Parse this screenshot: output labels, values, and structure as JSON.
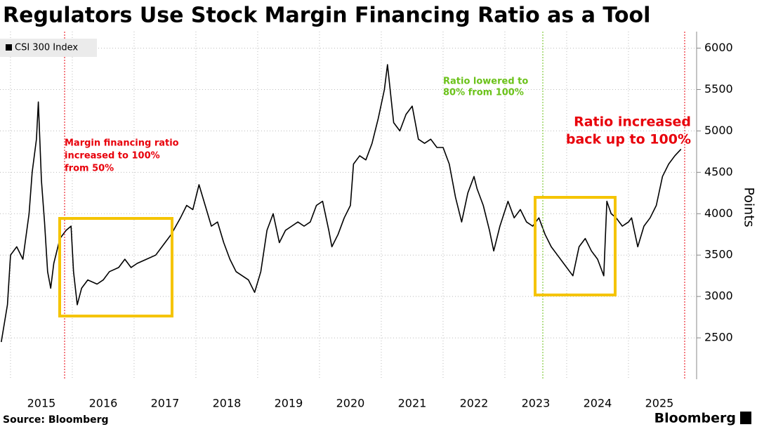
{
  "chart_data": {
    "type": "line",
    "title": "Regulators Use Stock Margin Financing Ratio as a Tool",
    "y_label": "Points",
    "source": "Source: Bloomberg",
    "brand": "Bloomberg",
    "annotations": [
      {
        "lines": [
          "Margin financing ratio",
          "increased to 100%",
          "from 50%"
        ],
        "color": "#e8000b"
      },
      {
        "lines": [
          "Ratio lowered to",
          "80% from 100%"
        ],
        "color": "#6bc21a"
      },
      {
        "lines": [
          "Ratio increased",
          "back up to 100%"
        ],
        "color": "#e8000b"
      }
    ],
    "x": [
      2014.85,
      2014.95,
      2015.0,
      2015.1,
      2015.2,
      2015.3,
      2015.35,
      2015.42,
      2015.45,
      2015.5,
      2015.55,
      2015.6,
      2015.65,
      2015.7,
      2015.8,
      2015.9,
      2015.98,
      2016.02,
      2016.08,
      2016.15,
      2016.25,
      2016.4,
      2016.5,
      2016.6,
      2016.75,
      2016.85,
      2016.95,
      2017.05,
      2017.2,
      2017.35,
      2017.5,
      2017.6,
      2017.75,
      2017.85,
      2017.95,
      2018.05,
      2018.15,
      2018.25,
      2018.35,
      2018.45,
      2018.55,
      2018.65,
      2018.75,
      2018.85,
      2018.95,
      2019.05,
      2019.15,
      2019.25,
      2019.35,
      2019.45,
      2019.55,
      2019.65,
      2019.75,
      2019.85,
      2019.95,
      2020.05,
      2020.15,
      2020.2,
      2020.3,
      2020.4,
      2020.5,
      2020.55,
      2020.65,
      2020.75,
      2020.85,
      2020.95,
      2021.05,
      2021.1,
      2021.2,
      2021.3,
      2021.4,
      2021.5,
      2021.6,
      2021.7,
      2021.8,
      2021.9,
      2022.0,
      2022.1,
      2022.2,
      2022.3,
      2022.4,
      2022.5,
      2022.55,
      2022.65,
      2022.75,
      2022.82,
      2022.92,
      2023.05,
      2023.15,
      2023.25,
      2023.35,
      2023.45,
      2023.55,
      2023.65,
      2023.75,
      2023.85,
      2023.95,
      2024.05,
      2024.1,
      2024.2,
      2024.3,
      2024.4,
      2024.5,
      2024.6,
      2024.65,
      2024.72,
      2024.8,
      2024.9,
      2025.0,
      2025.05,
      2025.15,
      2025.25,
      2025.35,
      2025.45,
      2025.55,
      2025.65,
      2025.75,
      2025.85
    ],
    "series": [
      {
        "name": "CSI 300 Index",
        "color": "#000000",
        "values": [
          2450,
          2900,
          3500,
          3600,
          3450,
          4000,
          4500,
          4900,
          5350,
          4400,
          3900,
          3300,
          3100,
          3400,
          3700,
          3800,
          3850,
          3300,
          2900,
          3100,
          3200,
          3150,
          3200,
          3300,
          3350,
          3450,
          3350,
          3400,
          3450,
          3500,
          3650,
          3750,
          3950,
          4100,
          4050,
          4350,
          4100,
          3850,
          3900,
          3650,
          3450,
          3300,
          3250,
          3200,
          3050,
          3300,
          3800,
          4000,
          3650,
          3800,
          3850,
          3900,
          3850,
          3900,
          4100,
          4150,
          3800,
          3600,
          3750,
          3950,
          4100,
          4600,
          4700,
          4650,
          4850,
          5150,
          5500,
          5800,
          5100,
          5000,
          5200,
          5300,
          4900,
          4850,
          4900,
          4800,
          4800,
          4600,
          4200,
          3900,
          4250,
          4450,
          4300,
          4100,
          3800,
          3550,
          3850,
          4150,
          3950,
          4050,
          3900,
          3850,
          3950,
          3750,
          3600,
          3500,
          3400,
          3300,
          3250,
          3600,
          3700,
          3550,
          3450,
          3250,
          4150,
          4000,
          3950,
          3850,
          3900,
          3950,
          3600,
          3850,
          3950,
          4100,
          4450,
          4600,
          4700,
          4780
        ]
      }
    ],
    "xlim": [
      2014.83,
      2026.08
    ],
    "xticks": [
      2015,
      2016,
      2017,
      2018,
      2019,
      2020,
      2021,
      2022,
      2023,
      2024,
      2025
    ],
    "ylim": [
      2000,
      6200
    ],
    "yticks": [
      2500,
      3000,
      3500,
      4000,
      4500,
      5000,
      5500,
      6000
    ],
    "grid": true
  }
}
